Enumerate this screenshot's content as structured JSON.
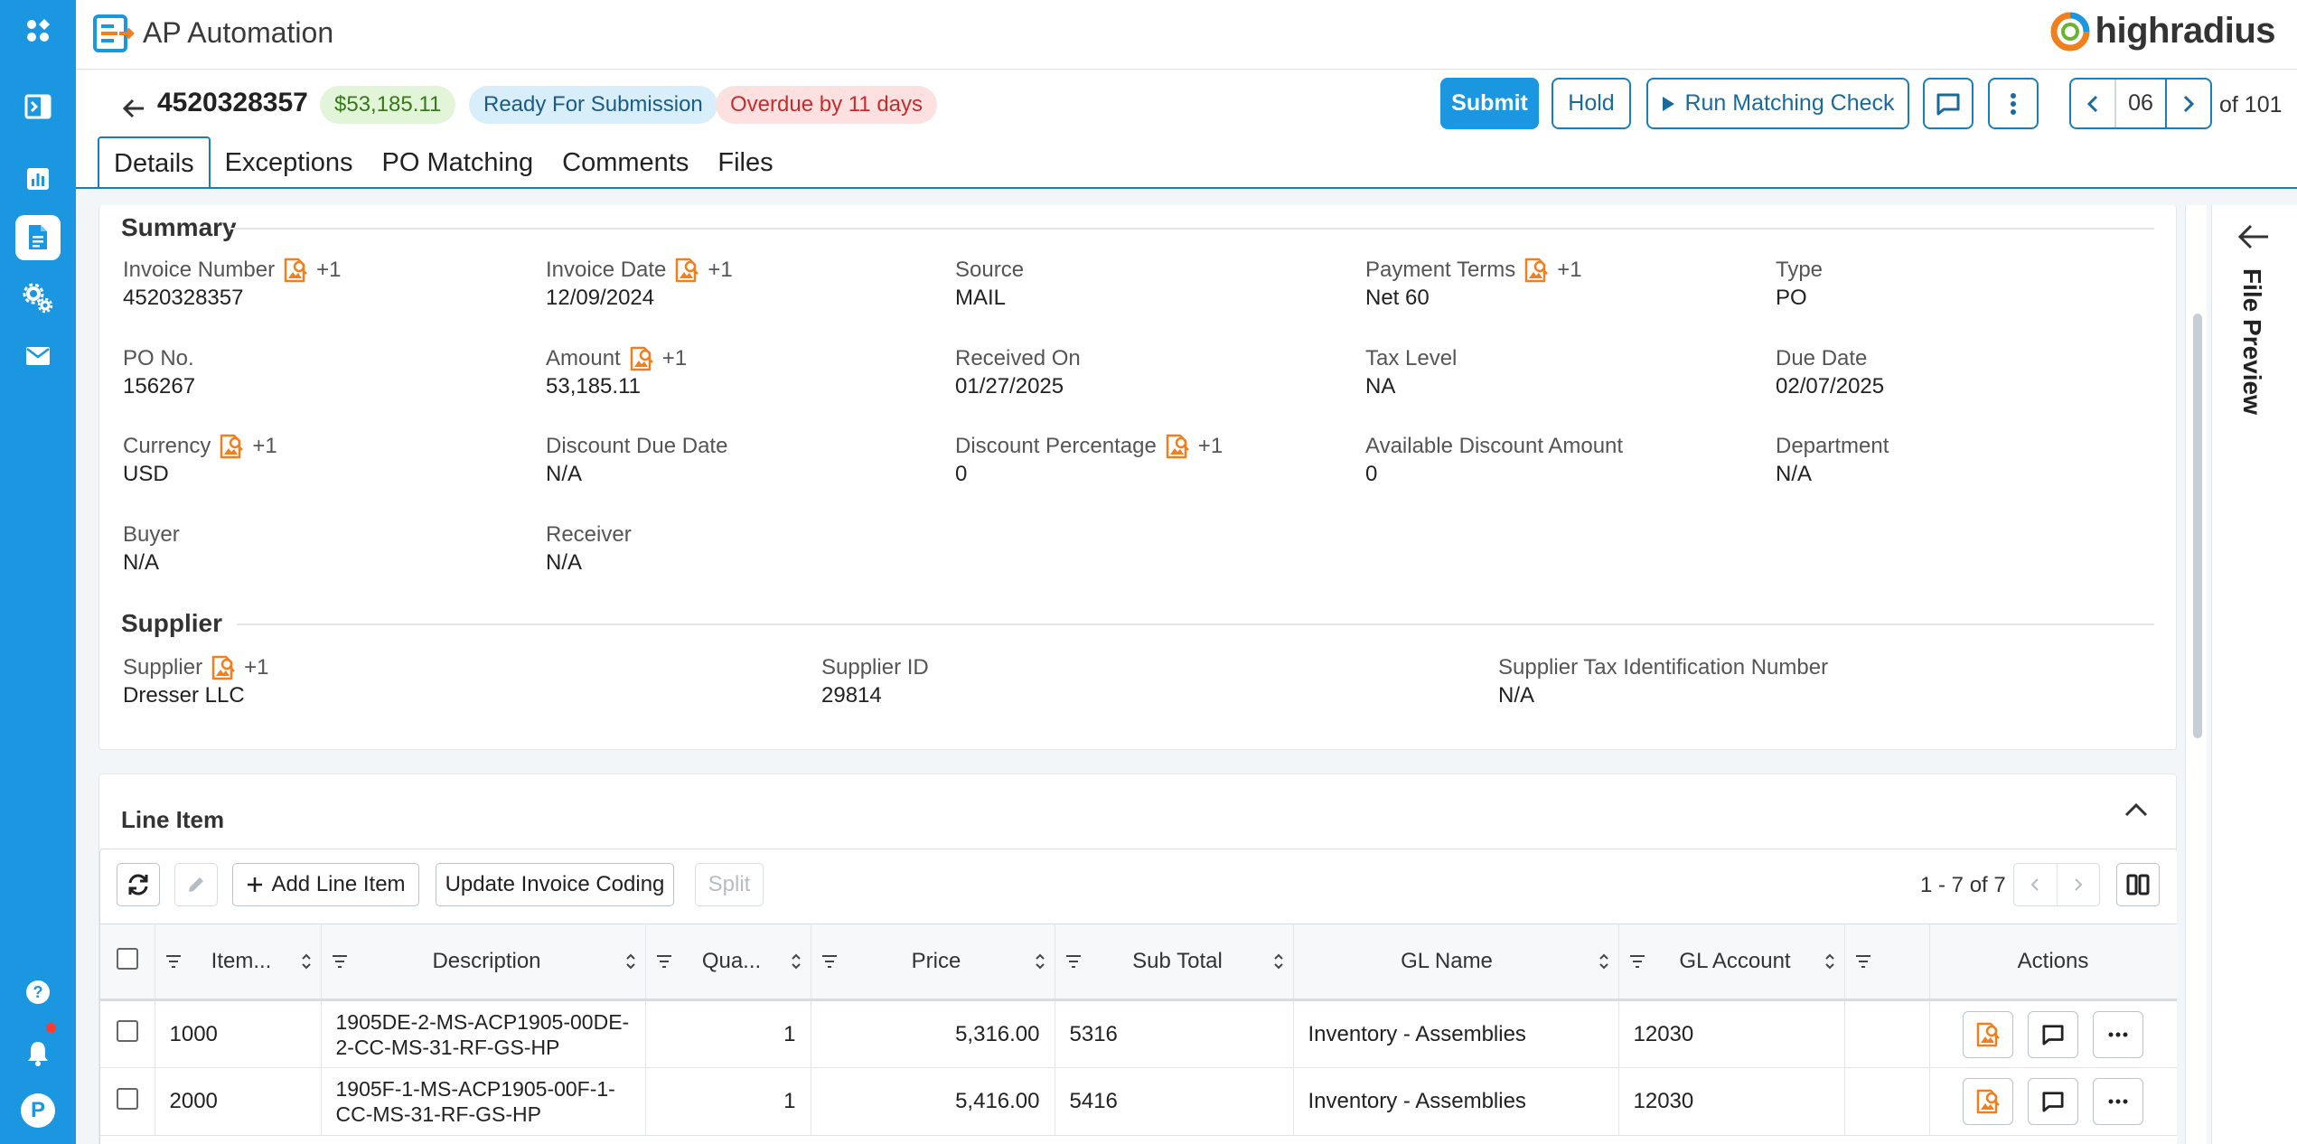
{
  "app": {
    "title": "AP Automation",
    "brand": "highradius"
  },
  "colors": {
    "primary": "#1a97e0",
    "accent": "#f07f1e",
    "success": "#357a18",
    "danger": "#c72c2c"
  },
  "sidebar": {
    "items": [
      {
        "name": "apps",
        "icon": "apps-icon"
      },
      {
        "name": "collapse",
        "icon": "sidebar-toggle-icon"
      },
      {
        "name": "reports",
        "icon": "bar-chart-icon"
      },
      {
        "name": "invoices",
        "icon": "document-icon",
        "active": true
      },
      {
        "name": "settings",
        "icon": "gears-icon"
      },
      {
        "name": "mail",
        "icon": "mail-icon"
      }
    ],
    "bottom": {
      "help": "help-icon",
      "notifications": "bell-icon",
      "avatar_initial": "P"
    }
  },
  "header": {
    "invoice_id": "4520328357",
    "amount_badge": "$53,185.11",
    "status_badge": "Ready For Submission",
    "overdue_badge": "Overdue by 11 days",
    "submit_label": "Submit",
    "hold_label": "Hold",
    "run_label": "Run Matching Check",
    "page_current": "06",
    "page_total": "of 101"
  },
  "tabs": [
    "Details",
    "Exceptions",
    "PO Matching",
    "Comments",
    "Files"
  ],
  "summary": {
    "title": "Summary",
    "fields": {
      "invoice_number": {
        "label": "Invoice Number",
        "extra": "+1",
        "value": "4520328357"
      },
      "invoice_date": {
        "label": "Invoice Date",
        "extra": "+1",
        "value": "12/09/2024"
      },
      "source": {
        "label": "Source",
        "value": "MAIL"
      },
      "payment_terms": {
        "label": "Payment Terms",
        "extra": "+1",
        "value": "Net 60"
      },
      "type": {
        "label": "Type",
        "value": "PO"
      },
      "po_no": {
        "label": "PO No.",
        "value": "156267"
      },
      "amount": {
        "label": "Amount",
        "extra": "+1",
        "value": "53,185.11"
      },
      "received_on": {
        "label": "Received On",
        "value": "01/27/2025"
      },
      "tax_level": {
        "label": "Tax Level",
        "value": "NA"
      },
      "due_date": {
        "label": "Due Date",
        "value": "02/07/2025"
      },
      "currency": {
        "label": "Currency",
        "extra": "+1",
        "value": "USD"
      },
      "discount_due_date": {
        "label": "Discount Due Date",
        "value": "N/A"
      },
      "discount_percentage": {
        "label": "Discount Percentage",
        "extra": "+1",
        "value": "0"
      },
      "available_discount": {
        "label": "Available Discount Amount",
        "value": "0"
      },
      "department": {
        "label": "Department",
        "value": "N/A"
      },
      "buyer": {
        "label": "Buyer",
        "value": "N/A"
      },
      "receiver": {
        "label": "Receiver",
        "value": "N/A"
      }
    }
  },
  "supplier": {
    "title": "Supplier",
    "fields": {
      "supplier": {
        "label": "Supplier",
        "extra": "+1",
        "value": "Dresser LLC"
      },
      "supplier_id": {
        "label": "Supplier ID",
        "value": "29814"
      },
      "tax_id": {
        "label": "Supplier Tax Identification Number",
        "value": "N/A"
      }
    }
  },
  "line_items": {
    "title": "Line Item",
    "toolbar": {
      "add_label": "Add Line Item",
      "update_label": "Update Invoice Coding",
      "split_label": "Split",
      "count": "1 - 7 of 7"
    },
    "columns": [
      "Item...",
      "Description",
      "Qua...",
      "Price",
      "Sub Total",
      "GL Name",
      "GL Account",
      "",
      "Actions"
    ],
    "rows": [
      {
        "item": "1000",
        "description": "1905DE-2-MS-ACP1905-00DE-2-CC-MS-31-RF-GS-HP",
        "quantity": "1",
        "price": "5,316.00",
        "subtotal": "5316",
        "gl_name": "Inventory - Assemblies",
        "gl_account": "12030"
      },
      {
        "item": "2000",
        "description": "1905F-1-MS-ACP1905-00F-1-CC-MS-31-RF-GS-HP",
        "quantity": "1",
        "price": "5,416.00",
        "subtotal": "5416",
        "gl_name": "Inventory - Assemblies",
        "gl_account": "12030"
      }
    ]
  },
  "preview": {
    "label": "File Preview"
  }
}
